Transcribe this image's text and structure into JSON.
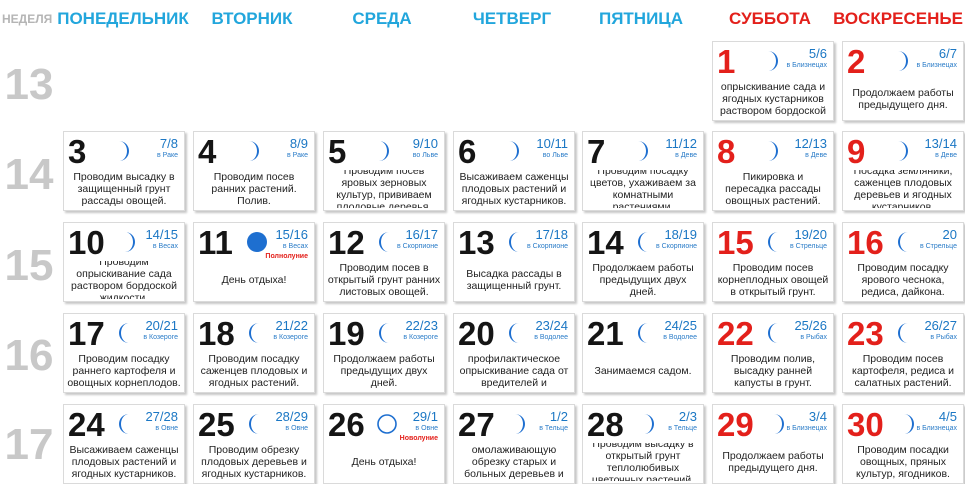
{
  "header": {
    "week_label": "НЕДЕЛЯ",
    "days": [
      "ПОНЕДЕЛЬНИК",
      "ВТОРНИК",
      "СРЕДА",
      "ЧЕТВЕРГ",
      "ПЯТНИЦА",
      "СУББОТА",
      "ВОСКРЕСЕНЬЕ"
    ]
  },
  "colors": {
    "weekday": "#22a6dc",
    "weekend": "#e3201b",
    "moon": "#1e6fd0",
    "text": "#222222"
  },
  "weeks": [
    {
      "number": "13",
      "days": [
        null,
        null,
        null,
        null,
        null,
        {
          "day": "1",
          "lunar": "5/6",
          "zodiac": "в Близнецах",
          "moon": "waxing-crescent-icon",
          "text": "Проводим опрыскивание сада и ягодных кустарников раствором бордоской жидкости."
        },
        {
          "day": "2",
          "lunar": "6/7",
          "zodiac": "в Близнецах",
          "moon": "waxing-crescent-icon",
          "text": "Продолжаем работы предыдущего дня."
        }
      ]
    },
    {
      "number": "14",
      "days": [
        {
          "day": "3",
          "lunar": "7/8",
          "zodiac": "в Раке",
          "moon": "waxing-crescent-icon",
          "text": "Проводим высадку в защищенный грунт рассады овощей."
        },
        {
          "day": "4",
          "lunar": "8/9",
          "zodiac": "в Раке",
          "moon": "waxing-crescent-icon",
          "text": "Проводим посев ранних растений. Полив."
        },
        {
          "day": "5",
          "lunar": "9/10",
          "zodiac": "во Льве",
          "moon": "waxing-crescent-icon",
          "text": "Проводим посев яровых зерновых культур, прививаем плодовые деревья."
        },
        {
          "day": "6",
          "lunar": "10/11",
          "zodiac": "во Льве",
          "moon": "waxing-crescent-icon",
          "text": "Высаживаем саженцы плодовых растений и ягодных кустарников."
        },
        {
          "day": "7",
          "lunar": "11/12",
          "zodiac": "в Деве",
          "moon": "waxing-crescent-icon",
          "text": "Проводим посадку цветов, ухаживаем за комнатными растениями."
        },
        {
          "day": "8",
          "lunar": "12/13",
          "zodiac": "в Деве",
          "moon": "waxing-crescent-icon",
          "text": "Пикировка и пересадка рассады овощных растений."
        },
        {
          "day": "9",
          "lunar": "13/14",
          "zodiac": "в Деве",
          "moon": "waxing-crescent-icon",
          "text": "Посадка земляники, саженцев плодовых деревьев и ягодных кустарников."
        }
      ]
    },
    {
      "number": "15",
      "days": [
        {
          "day": "10",
          "lunar": "14/15",
          "zodiac": "в Весах",
          "moon": "waxing-crescent-icon",
          "text": "Проводим опрыскивание сада раствором бордоской жидкости."
        },
        {
          "day": "11",
          "lunar": "15/16",
          "zodiac": "в Весах",
          "moon": "full-moon-icon",
          "phase": "Полнолуние",
          "text": "День отдыха!"
        },
        {
          "day": "12",
          "lunar": "16/17",
          "zodiac": "в Скорпионе",
          "moon": "waning-crescent-icon",
          "text": "Проводим посев в открытый грунт ранних листовых овощей."
        },
        {
          "day": "13",
          "lunar": "17/18",
          "zodiac": "в Скорпионе",
          "moon": "waning-crescent-icon",
          "text": "Высадка рассады в защищенный грунт."
        },
        {
          "day": "14",
          "lunar": "18/19",
          "zodiac": "в Скорпионе",
          "moon": "waning-crescent-icon",
          "text": "Продолжаем работы предыдущих двух дней."
        },
        {
          "day": "15",
          "lunar": "19/20",
          "zodiac": "в Стрельце",
          "moon": "waning-crescent-icon",
          "text": "Проводим посев корнеплодных овощей в открытый грунт."
        },
        {
          "day": "16",
          "lunar": "20",
          "zodiac": "в Стрельце",
          "moon": "waning-crescent-icon",
          "text": "Проводим посадку ярового чеснока, редиса, дайкона."
        }
      ]
    },
    {
      "number": "16",
      "days": [
        {
          "day": "17",
          "lunar": "20/21",
          "zodiac": "в Козероге",
          "moon": "waning-crescent-icon",
          "text": "Проводим посадку раннего картофеля и овощных корнеплодов."
        },
        {
          "day": "18",
          "lunar": "21/22",
          "zodiac": "в Козероге",
          "moon": "waning-crescent-icon",
          "text": "Проводим посадку саженцев плодовых и ягодных растений."
        },
        {
          "day": "19",
          "lunar": "22/23",
          "zodiac": "в Козероге",
          "moon": "waning-crescent-icon",
          "text": "Продолжаем работы предыдущих двух дней."
        },
        {
          "day": "20",
          "lunar": "23/24",
          "zodiac": "в Водолее",
          "moon": "waning-crescent-icon",
          "text": "Проводим профилактическое опрыскивание сада от вредителей и болезней."
        },
        {
          "day": "21",
          "lunar": "24/25",
          "zodiac": "в Водолее",
          "moon": "waning-crescent-icon",
          "text": "Занимаемся садом."
        },
        {
          "day": "22",
          "lunar": "25/26",
          "zodiac": "в Рыбах",
          "moon": "waning-crescent-icon",
          "text": "Проводим полив, высадку ранней капусты в грунт."
        },
        {
          "day": "23",
          "lunar": "26/27",
          "zodiac": "в Рыбах",
          "moon": "waning-crescent-icon",
          "text": "Проводим посев картофеля, редиса и салатных растений."
        }
      ]
    },
    {
      "number": "17",
      "days": [
        {
          "day": "24",
          "lunar": "27/28",
          "zodiac": "в Овне",
          "moon": "waning-crescent-icon",
          "text": "Высаживаем саженцы плодовых растений и ягодных кустарников."
        },
        {
          "day": "25",
          "lunar": "28/29",
          "zodiac": "в Овне",
          "moon": "waning-crescent-icon",
          "text": "Проводим обрезку плодовых деревьев и ягодных кустарников."
        },
        {
          "day": "26",
          "lunar": "29/1",
          "zodiac": "в Овне",
          "moon": "new-moon-icon",
          "phase": "Новолуние",
          "text": "День отдыха!"
        },
        {
          "day": "27",
          "lunar": "1/2",
          "zodiac": "в Тельце",
          "moon": "waxing-crescent-icon",
          "text": "Проводим омолаживающую обрезку старых и больных деревьев и кустарников."
        },
        {
          "day": "28",
          "lunar": "2/3",
          "zodiac": "в Тельце",
          "moon": "waxing-crescent-icon",
          "text": "Проводим высадку в открытый грунт теплолюбивых цветочных растений."
        },
        {
          "day": "29",
          "lunar": "3/4",
          "zodiac": "в Близнецах",
          "moon": "waxing-crescent-icon",
          "text": "Продолжаем работы предыдущего дня."
        },
        {
          "day": "30",
          "lunar": "4/5",
          "zodiac": "в Близнецах",
          "moon": "waxing-crescent-icon",
          "text": "Проводим посадки овощных, пряных культур, ягодников."
        }
      ]
    }
  ]
}
